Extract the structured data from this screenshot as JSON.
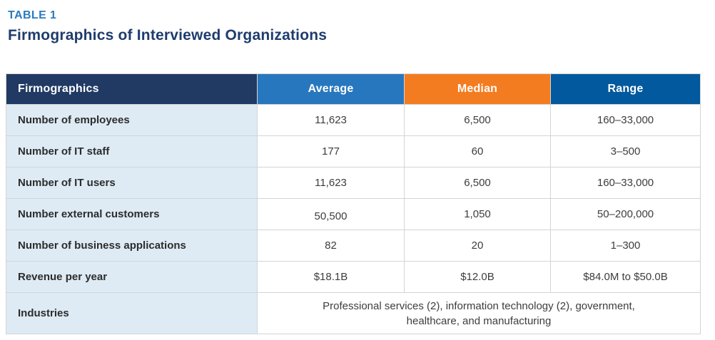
{
  "page": {
    "eyebrow": "TABLE 1",
    "title": "Firmographics of Interviewed Organizations"
  },
  "colors": {
    "eyebrow_text": "#2b7bc0",
    "title_text": "#1f3c6d",
    "header_firmographics_bg": "#203a64",
    "header_average_bg": "#2777be",
    "header_median_bg": "#f47c20",
    "header_range_bg": "#02599d",
    "label_column_bg": "#deebf5",
    "cell_border": "#d4d4d4",
    "header_text": "#ffffff",
    "body_text": "#3d3d3d"
  },
  "table": {
    "columns": [
      {
        "label": "Firmographics"
      },
      {
        "label": "Average"
      },
      {
        "label": "Median"
      },
      {
        "label": "Range"
      }
    ],
    "rows": [
      {
        "label": "Number of employees",
        "average": "11,623",
        "median": "6,500",
        "range": "160–33,000"
      },
      {
        "label": "Number of IT staff",
        "average": "177",
        "median": "60",
        "range": "3–500"
      },
      {
        "label": "Number of IT users",
        "average": "11,623",
        "median": "6,500",
        "range": "160–33,000"
      },
      {
        "label": "Number external customers",
        "average": "50,500",
        "median": "1,050",
        "range": "50–200,000"
      },
      {
        "label": "Number of business applications",
        "average": "82",
        "median": "20",
        "range": "1–300"
      },
      {
        "label": "Revenue per year",
        "average": "$18.1B",
        "median": "$12.0B",
        "range": "$84.0M to $50.0B"
      }
    ],
    "spanning_row": {
      "label": "Industries",
      "value": "Professional services (2), information technology (2), government, healthcare, and manufacturing"
    }
  }
}
